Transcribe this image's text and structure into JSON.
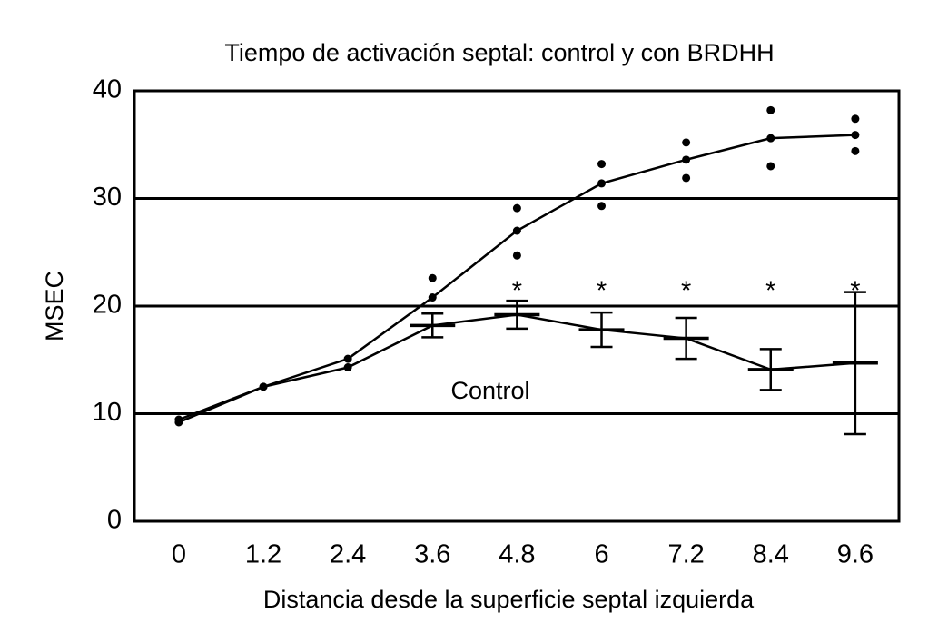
{
  "chart_data": {
    "type": "line",
    "title": "Tiempo de activación septal: control y con BRDHH",
    "xlabel": "Distancia desde la superficie septal izquierda",
    "ylabel": "MSEC",
    "x": [
      0,
      1.2,
      2.4,
      3.6,
      4.8,
      6,
      7.2,
      8.4,
      9.6
    ],
    "xlim": [
      -0.63,
      10.22
    ],
    "xticks": [
      0,
      1.2,
      2.4,
      3.6,
      4.8,
      6,
      7.2,
      8.4,
      9.6
    ],
    "ylim": [
      0,
      40
    ],
    "yticks": [
      0,
      10,
      20,
      30,
      40
    ],
    "grid": true,
    "series": [
      {
        "color": "#000000",
        "values": [
          9.45,
          12.5,
          15.1,
          20.8,
          27.0,
          31.4,
          33.6,
          35.6,
          35.9
        ]
      },
      {
        "name": "Control",
        "color": "#000000",
        "values": [
          9.2,
          12.5,
          14.3,
          18.2,
          19.2,
          17.8,
          17.0,
          14.1,
          14.7
        ],
        "errors": [
          null,
          null,
          null,
          1.1,
          1.3,
          1.6,
          1.9,
          1.9,
          6.6
        ]
      }
    ],
    "points": {
      "x": [
        3.6,
        4.8,
        4.8,
        6,
        6,
        7.2,
        7.2,
        8.4,
        8.4,
        9.6,
        9.6
      ],
      "values": [
        22.6,
        29.1,
        24.7,
        33.2,
        29.3,
        35.2,
        31.9,
        38.2,
        33.0,
        37.4,
        34.4
      ]
    },
    "significance": {
      "label": "*",
      "x": [
        4.8,
        6,
        7.2,
        8.4,
        9.6
      ]
    }
  }
}
